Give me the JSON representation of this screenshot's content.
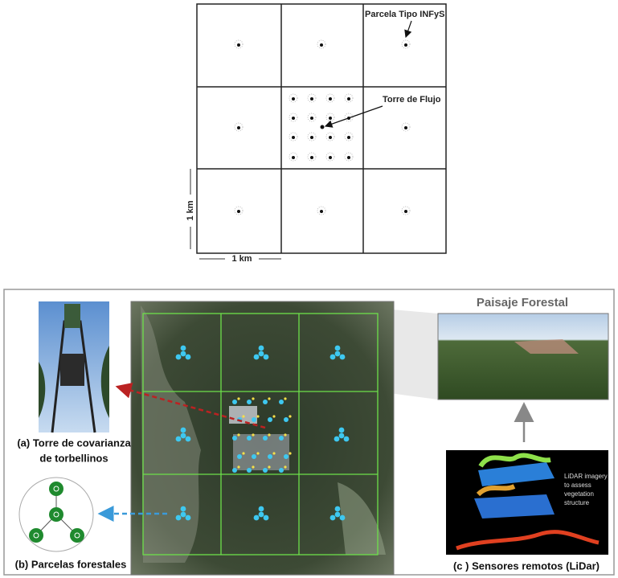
{
  "top_grid": {
    "plot_label": "Parcela Tipo INFyS",
    "tower_label": "Torre de Flujo",
    "scale_vertical": "1 km",
    "scale_horizontal": "1 km"
  },
  "bottom_panel": {
    "landscape_title": "Paisaje Forestal",
    "panel_a": [
      "(a) Torre de covarianza",
      "de torbellinos"
    ],
    "panel_b": "(b) Parcelas forestales",
    "panel_c": "(c ) Sensores remotos (LiDar)",
    "lidar_note": [
      "LiDAR imagery",
      "to assess",
      "vegetation",
      "structure"
    ]
  }
}
